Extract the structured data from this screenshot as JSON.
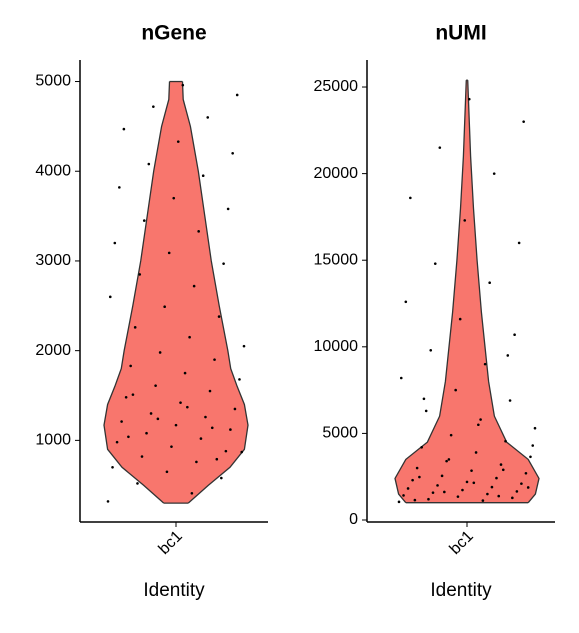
{
  "chart_data": [
    {
      "type": "violin",
      "title": "nGene",
      "x_label": "Identity",
      "categories": [
        "bc1"
      ],
      "color": "#f8766d",
      "ylim": [
        90,
        5240
      ],
      "yticks": [
        1000,
        2000,
        3000,
        4000,
        5000
      ],
      "violin": {
        "y": [
          300,
          500,
          700,
          900,
          1170,
          1400,
          1600,
          1800,
          2000,
          2500,
          3000,
          3500,
          4000,
          4500,
          4800,
          5000
        ],
        "density": [
          0.17,
          0.45,
          0.75,
          0.95,
          1.0,
          0.95,
          0.85,
          0.76,
          0.72,
          0.6,
          0.49,
          0.4,
          0.31,
          0.2,
          0.1,
          0.09
        ]
      },
      "points": [
        320,
        410,
        520,
        580,
        650,
        700,
        760,
        820,
        880,
        930,
        980,
        1020,
        1080,
        1120,
        1170,
        1210,
        1260,
        1300,
        1350,
        1420,
        1480,
        1550,
        1610,
        1680,
        1750,
        1830,
        1900,
        1980,
        2050,
        2150,
        2260,
        2380,
        2490,
        2600,
        2720,
        2850,
        2970,
        3090,
        3200,
        3330,
        3450,
        3580,
        3700,
        3820,
        3950,
        4080,
        4200,
        4330,
        4470,
        4600,
        4720,
        4850,
        4960,
        1040,
        1140,
        1240,
        870,
        1370,
        1510,
        790
      ]
    },
    {
      "type": "violin",
      "title": "nUMI",
      "x_label": "Identity",
      "categories": [
        "bc1"
      ],
      "color": "#f8766d",
      "ylim": [
        -115,
        26560
      ],
      "yticks": [
        0,
        5000,
        10000,
        15000,
        20000,
        25000
      ],
      "violin": {
        "y": [
          1000,
          1500,
          2400,
          3500,
          4500,
          6000,
          8000,
          10000,
          12000,
          15000,
          18000,
          21000,
          25400
        ],
        "density": [
          0.85,
          0.95,
          1.0,
          0.85,
          0.55,
          0.38,
          0.3,
          0.25,
          0.2,
          0.14,
          0.09,
          0.05,
          0.01
        ]
      },
      "points": [
        1050,
        1120,
        1200,
        1280,
        1350,
        1420,
        1500,
        1580,
        1650,
        1730,
        1820,
        1900,
        2000,
        2100,
        2200,
        2300,
        2420,
        2550,
        2700,
        2850,
        3000,
        3200,
        3400,
        3650,
        3900,
        4200,
        4550,
        4900,
        5300,
        5800,
        6300,
        6900,
        7500,
        8200,
        9000,
        9800,
        10700,
        11600,
        12600,
        13700,
        14800,
        16000,
        17300,
        18600,
        20000,
        21500,
        23000,
        24300,
        1150,
        1380,
        1620,
        1880,
        2150,
        2480,
        2900,
        3500,
        4300,
        5500,
        7000,
        9500
      ]
    }
  ]
}
